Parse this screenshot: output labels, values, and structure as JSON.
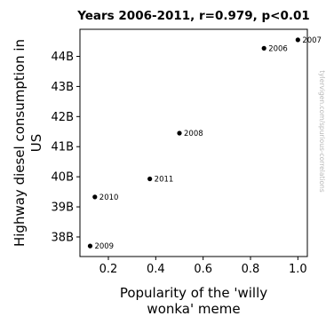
{
  "chart_data": {
    "type": "scatter",
    "title": "Years 2006-2011, r=0.979, p<0.01",
    "xlabel_lines": [
      "Popularity of the 'willy",
      "wonka' meme"
    ],
    "ylabel_lines": [
      "Highway diesel consumption in",
      "US"
    ],
    "xlim": [
      0.08,
      1.04
    ],
    "ylim": [
      37.35,
      44.9
    ],
    "x_ticks": [
      0.2,
      0.4,
      0.6,
      0.8,
      1.0
    ],
    "x_tick_labels": [
      "0.2",
      "0.4",
      "0.6",
      "0.8",
      "1.0"
    ],
    "y_ticks": [
      38,
      39,
      40,
      41,
      42,
      43,
      44
    ],
    "y_tick_labels": [
      "38B",
      "39B",
      "40B",
      "41B",
      "42B",
      "43B",
      "44B"
    ],
    "points": [
      {
        "label": "2006",
        "x": 0.857,
        "y": 44.27
      },
      {
        "label": "2007",
        "x": 1.0,
        "y": 44.55
      },
      {
        "label": "2008",
        "x": 0.5,
        "y": 41.45
      },
      {
        "label": "2009",
        "x": 0.123,
        "y": 37.7
      },
      {
        "label": "2010",
        "x": 0.143,
        "y": 39.33
      },
      {
        "label": "2011",
        "x": 0.375,
        "y": 39.93
      }
    ],
    "grid": false,
    "credit": "tylervigen.com/spurious-correlations",
    "colors": {
      "marker": "#000000",
      "credit": "#b8b8b8"
    }
  }
}
